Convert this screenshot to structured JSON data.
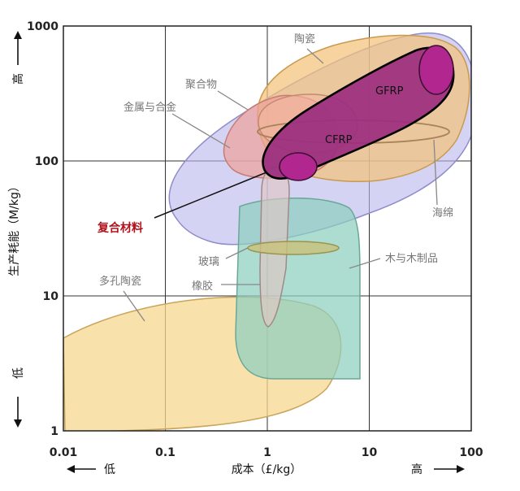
{
  "chart_data": {
    "type": "area",
    "x_scale": "log",
    "y_scale": "log",
    "xlim": [
      0.01,
      100
    ],
    "ylim": [
      1,
      1000
    ],
    "grid": true,
    "xlabel": "成本（£/kg）",
    "ylabel": "生产耗能（M/kg）",
    "x_ticks": [
      {
        "value": 0.01,
        "label": "0.01"
      },
      {
        "value": 0.1,
        "label": "0.1"
      },
      {
        "value": 1,
        "label": "1"
      },
      {
        "value": 10,
        "label": "10"
      },
      {
        "value": 100,
        "label": "100"
      }
    ],
    "y_ticks": [
      {
        "value": 1,
        "label": "1"
      },
      {
        "value": 10,
        "label": "10"
      },
      {
        "value": 100,
        "label": "100"
      },
      {
        "value": 1000,
        "label": "1000"
      }
    ],
    "x_low": "低",
    "x_high": "高",
    "y_low": "低",
    "y_high": "高",
    "regions": [
      {
        "label": "多孔陶瓷",
        "x_range": [
          0.01,
          8
        ],
        "y_range": [
          1,
          10
        ]
      },
      {
        "label": "木与木制品",
        "x_range": [
          0.8,
          9
        ],
        "y_range": [
          2.5,
          40
        ]
      },
      {
        "label": "橡胶",
        "x_range": [
          1,
          1.8
        ],
        "y_range": [
          6,
          90
        ]
      },
      {
        "label": "玻璃",
        "x_range": [
          0.9,
          7
        ],
        "y_range": [
          21,
          26
        ]
      },
      {
        "label": "复合材料",
        "x_range": [
          0.6,
          100
        ],
        "y_range": [
          25,
          600
        ]
      },
      {
        "label": "陶瓷",
        "x_range": [
          0.9,
          80
        ],
        "y_range": [
          75,
          950
        ]
      },
      {
        "label": "聚合物",
        "x_range": [
          0.8,
          4
        ],
        "y_range": [
          85,
          300
        ]
      },
      {
        "label": "金属与合金",
        "x_range": [
          1,
          5
        ],
        "y_range": [
          120,
          380
        ]
      },
      {
        "label": "海绵",
        "x_range": [
          1,
          30
        ],
        "y_range": [
          120,
          160
        ]
      },
      {
        "label": "CFRP",
        "x_range": [
          1.8,
          3
        ],
        "y_range": [
          78,
          115
        ]
      },
      {
        "label": "GFRP",
        "x_range": [
          30,
          70
        ],
        "y_range": [
          280,
          700
        ]
      }
    ],
    "colors": {
      "porous_ceramic": "#f7d790",
      "wood": "#8ecfbf",
      "composite": "#b8b6ec",
      "ceramic": "#f2c27a",
      "polymer": "#eea19a",
      "metal": "#f1b7a0",
      "fibre": "#9b2d7f",
      "accent_label": "#b0121b"
    }
  }
}
